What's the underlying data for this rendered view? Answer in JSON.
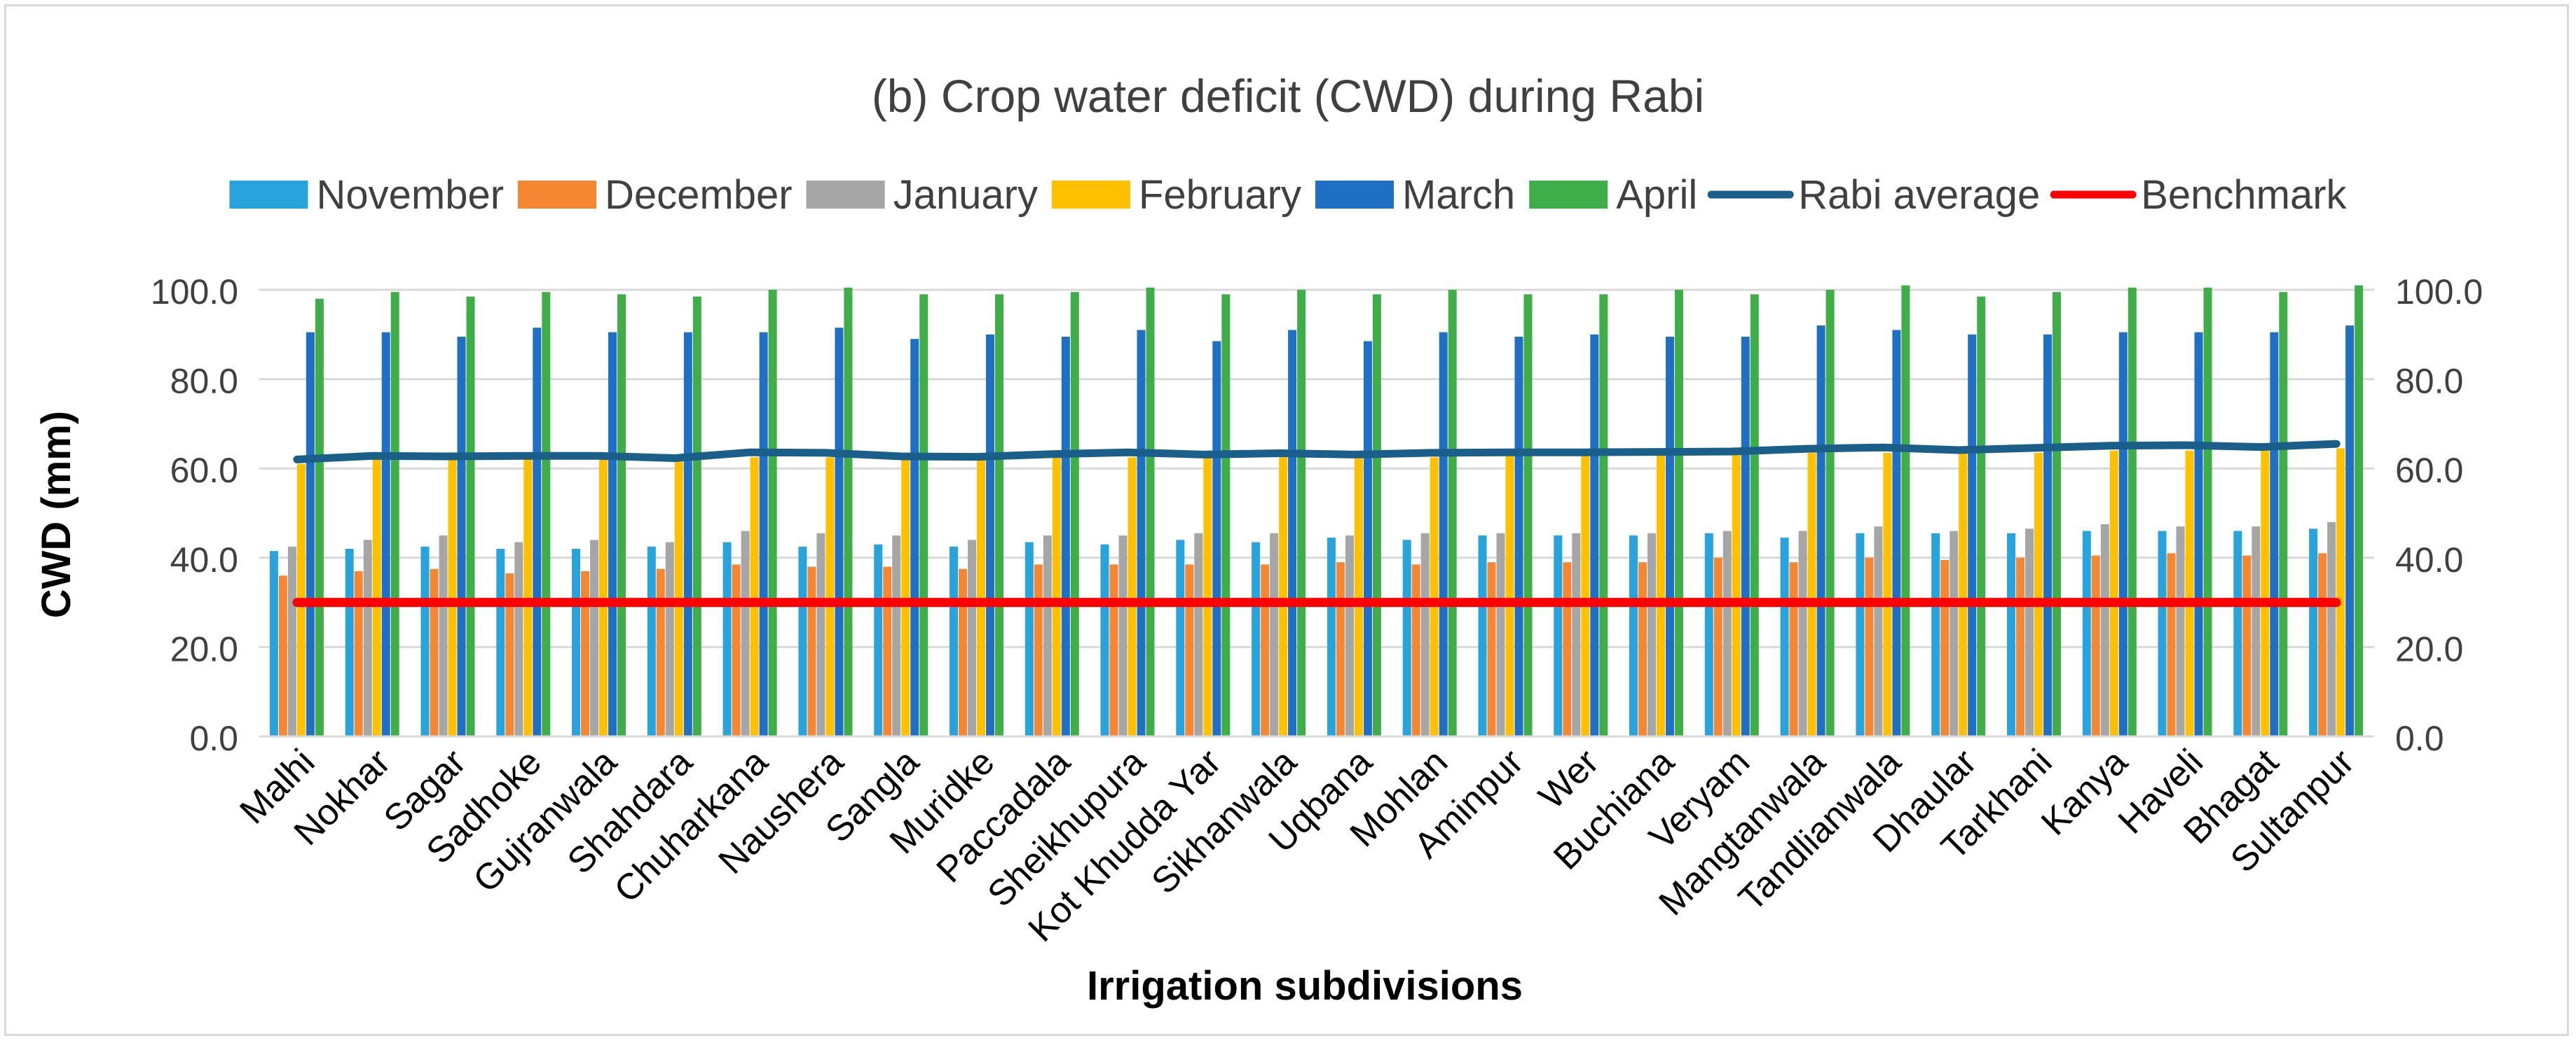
{
  "chart_data": {
    "type": "bar",
    "title": "(b) Crop water deficit (CWD) during Rabi",
    "xlabel": "Irrigation subdivisions",
    "ylabel": "CWD (mm)",
    "ylim": [
      0,
      100
    ],
    "yticks": [
      "0.0",
      "20.0",
      "40.0",
      "60.0",
      "80.0",
      "100.0"
    ],
    "grid": true,
    "legend_position": "top",
    "categories": [
      "Malhi",
      "Nokhar",
      "Sagar",
      "Sadhoke",
      "Gujranwala",
      "Shahdara",
      "Chuharkana",
      "Naushera",
      "Sangla",
      "Muridke",
      "Paccadala",
      "Sheikhupura",
      "Kot Khudda Yar",
      "Sikhanwala",
      "Uqbana",
      "Mohlan",
      "Aminpur",
      "Wer",
      "Buchiana",
      "Veryam",
      "Mangtanwala",
      "Tandlianwala",
      "Dhaular",
      "Tarkhani",
      "Kanya",
      "Haveli",
      "Bhagat",
      "Sultanpur"
    ],
    "series": [
      {
        "name": "November",
        "kind": "bar",
        "color": "#29a3dc",
        "values": [
          41.5,
          42,
          42.5,
          42,
          42,
          42.5,
          43.5,
          42.5,
          43,
          42.5,
          43.5,
          43,
          44,
          43.5,
          44.5,
          44,
          45,
          45,
          45,
          45.5,
          44.5,
          45.5,
          45.5,
          45.5,
          46,
          46,
          46,
          46.5
        ]
      },
      {
        "name": "December",
        "kind": "bar",
        "color": "#f58632",
        "values": [
          36,
          37,
          37.5,
          36.5,
          37,
          37.5,
          38.5,
          38,
          38,
          37.5,
          38.5,
          38.5,
          38.5,
          38.5,
          39,
          38.5,
          39,
          39,
          39,
          40,
          39,
          40,
          39.5,
          40,
          40.5,
          41,
          40.5,
          41
        ]
      },
      {
        "name": "January",
        "kind": "bar",
        "color": "#a6a6a6",
        "values": [
          42.5,
          44,
          45,
          43.5,
          44,
          43.5,
          46,
          45.5,
          45,
          44,
          45,
          45,
          45.5,
          45.5,
          45,
          45.5,
          45.5,
          45.5,
          45.5,
          46,
          46,
          47,
          46,
          46.5,
          47.5,
          47,
          47,
          48
        ]
      },
      {
        "name": "February",
        "kind": "bar",
        "color": "#ffc000",
        "values": [
          61,
          62,
          62,
          62,
          62,
          61.5,
          62.5,
          62.5,
          62,
          62,
          62.5,
          62.5,
          62.5,
          62.5,
          62.5,
          62.5,
          63,
          63,
          63,
          63,
          63.5,
          63.5,
          63.5,
          63.5,
          64,
          64,
          64,
          64.5
        ]
      },
      {
        "name": "March",
        "kind": "bar",
        "color": "#1f6fc5",
        "values": [
          90.5,
          90.5,
          89.5,
          91.5,
          90.5,
          90.5,
          90.5,
          91.5,
          89,
          90,
          89.5,
          91,
          88.5,
          91,
          88.5,
          90.5,
          89.5,
          90,
          89.5,
          89.5,
          92,
          91,
          90,
          90,
          90.5,
          90.5,
          90.5,
          92
        ]
      },
      {
        "name": "April",
        "kind": "bar",
        "color": "#3fae49",
        "values": [
          98,
          99.5,
          98.5,
          99.5,
          99,
          98.5,
          100,
          100.5,
          99,
          99,
          99.5,
          100.5,
          99,
          100,
          99,
          100,
          99,
          99,
          100,
          99,
          100,
          101,
          98.5,
          99.5,
          100.5,
          100.5,
          99.5,
          101
        ]
      },
      {
        "name": "Rabi average",
        "kind": "line",
        "color": "#1a5e8a",
        "values": [
          62,
          62.8,
          62.7,
          62.8,
          62.8,
          62.3,
          63.6,
          63.5,
          62.7,
          62.6,
          63.2,
          63.6,
          63.1,
          63.4,
          63.1,
          63.5,
          63.6,
          63.6,
          63.7,
          63.8,
          64.4,
          64.7,
          64.1,
          64.6,
          65.1,
          65.2,
          64.8,
          65.5
        ]
      },
      {
        "name": "Benchmark",
        "kind": "line",
        "color": "#ff0000",
        "values": [
          30,
          30,
          30,
          30,
          30,
          30,
          30,
          30,
          30,
          30,
          30,
          30,
          30,
          30,
          30,
          30,
          30,
          30,
          30,
          30,
          30,
          30,
          30,
          30,
          30,
          30,
          30,
          30
        ]
      }
    ]
  }
}
